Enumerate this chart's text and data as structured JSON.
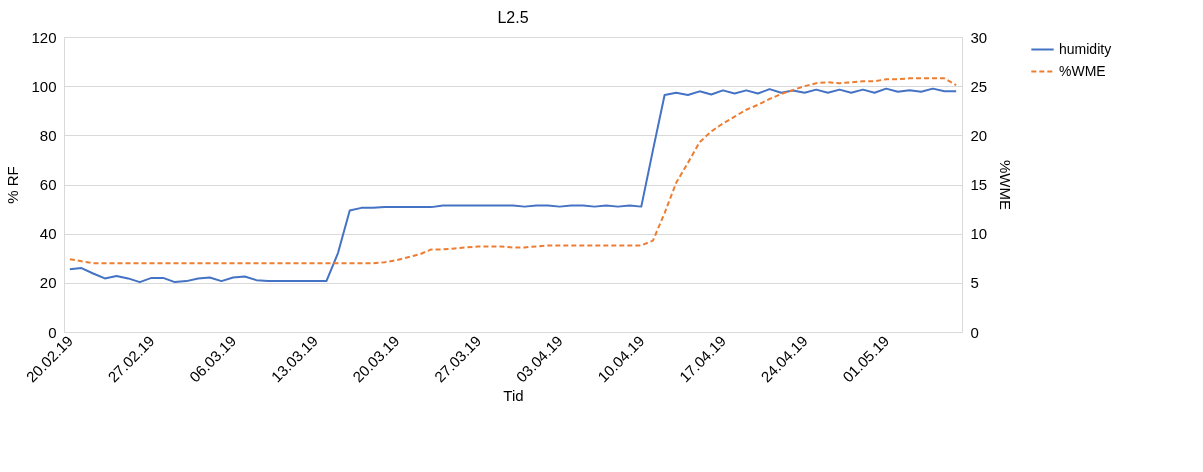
{
  "chart_data": {
    "type": "line",
    "title": "L2.5",
    "xlabel": "Tid",
    "ylabel": "% RF",
    "y2label": "%WME",
    "x": [
      "--02-20",
      "--02-21",
      "--02-22",
      "--02-23",
      "--02-24",
      "--02-25",
      "--02-26",
      "--02-27",
      "--02-28",
      "--03-01",
      "--03-02",
      "--03-03",
      "--03-04",
      "--03-05",
      "--03-06",
      "--03-07",
      "--03-08",
      "--03-09",
      "--03-10",
      "--03-11",
      "--03-12",
      "--03-13",
      "--03-14",
      "--03-15",
      "--03-16",
      "--03-17",
      "--03-18",
      "--03-19",
      "--03-20",
      "--03-21",
      "--03-22",
      "--03-23",
      "--03-24",
      "--03-25",
      "--03-26",
      "--03-27",
      "--03-28",
      "--03-29",
      "--03-30",
      "--03-31",
      "--04-01",
      "--04-02",
      "--04-03",
      "--04-04",
      "--04-05",
      "--04-06",
      "--04-07",
      "--04-08",
      "--04-09",
      "--04-10",
      "--04-11",
      "--04-12",
      "--04-13",
      "--04-14",
      "--04-15",
      "--04-16",
      "--04-17",
      "--04-18",
      "--04-19",
      "--04-20",
      "--04-21",
      "--04-22",
      "--04-23",
      "--04-24",
      "--04-25",
      "--04-26",
      "--04-27",
      "--04-28",
      "--04-29",
      "--04-30",
      "--05-01",
      "--05-02",
      "--05-03",
      "--05-04",
      "--05-05",
      "--05-06",
      "--05-07"
    ],
    "series": [
      {
        "name": "humidity",
        "color": "#4472c4",
        "line_style": "solid",
        "values": [
          25.5,
          26.0,
          23.8,
          21.8,
          22.8,
          21.8,
          20.3,
          22.0,
          22.0,
          20.3,
          20.7,
          21.8,
          22.2,
          20.7,
          22.2,
          22.6,
          21.1,
          20.7,
          20.7,
          20.7,
          20.7,
          20.7,
          20.7,
          32.2,
          49.4,
          50.5,
          50.5,
          50.8,
          50.8,
          50.8,
          50.8,
          50.8,
          51.5,
          51.5,
          51.5,
          51.5,
          51.5,
          51.5,
          51.5,
          51.0,
          51.5,
          51.5,
          51.0,
          51.5,
          51.5,
          51.0,
          51.5,
          51.0,
          51.5,
          51.0,
          74.0,
          96.4,
          97.3,
          96.4,
          97.9,
          96.6,
          98.3,
          97.0,
          98.3,
          97.0,
          98.8,
          97.3,
          98.2,
          97.3,
          98.6,
          97.3,
          98.6,
          97.3,
          98.6,
          97.3,
          99.0,
          97.7,
          98.3,
          97.7,
          99.0,
          97.9,
          97.9
        ]
      },
      {
        "name": "%WME",
        "color": "#ed7d31",
        "line_style": "dashed",
        "axis": "y2",
        "values": [
          7.4,
          7.2,
          7.0,
          7.0,
          7.0,
          7.0,
          7.0,
          7.0,
          7.0,
          7.0,
          7.0,
          7.0,
          7.0,
          7.0,
          7.0,
          7.0,
          7.0,
          7.0,
          7.0,
          7.0,
          7.0,
          7.0,
          7.0,
          7.0,
          7.0,
          7.0,
          7.0,
          7.1,
          7.3,
          7.6,
          7.9,
          8.4,
          8.4,
          8.5,
          8.6,
          8.7,
          8.7,
          8.7,
          8.6,
          8.6,
          8.7,
          8.8,
          8.8,
          8.8,
          8.8,
          8.8,
          8.8,
          8.8,
          8.8,
          8.8,
          9.3,
          12.1,
          15.2,
          17.2,
          19.3,
          20.4,
          21.2,
          21.9,
          22.6,
          23.1,
          23.7,
          24.2,
          24.6,
          25.0,
          25.3,
          25.4,
          25.3,
          25.4,
          25.5,
          25.5,
          25.7,
          25.7,
          25.8,
          25.8,
          25.8,
          25.8,
          25.1
        ]
      }
    ],
    "xlim": [
      "--02-19T12:00",
      "--05-07T12:00"
    ],
    "xticks": [
      {
        "value": "--02-20",
        "label": "20.02.19"
      },
      {
        "value": "--02-27",
        "label": "27.02.19"
      },
      {
        "value": "--03-06",
        "label": "06.03.19"
      },
      {
        "value": "--03-13",
        "label": "13.03.19"
      },
      {
        "value": "--03-20",
        "label": "20.03.19"
      },
      {
        "value": "--03-27",
        "label": "27.03.19"
      },
      {
        "value": "--04-03",
        "label": "03.04.19"
      },
      {
        "value": "--04-10",
        "label": "10.04.19"
      },
      {
        "value": "--04-17",
        "label": "17.04.19"
      },
      {
        "value": "--04-24",
        "label": "24.04.19"
      },
      {
        "value": "--05-01",
        "label": "01.05.19"
      }
    ],
    "ylim": [
      0,
      120
    ],
    "yticks": [
      0,
      20,
      40,
      60,
      80,
      100,
      120
    ],
    "y2lim": [
      0,
      30
    ],
    "y2ticks": [
      0,
      5,
      10,
      15,
      20,
      25,
      30
    ],
    "grid": "y",
    "legend": "right"
  }
}
